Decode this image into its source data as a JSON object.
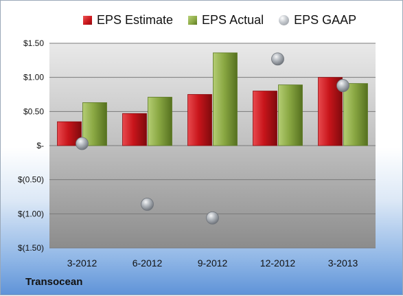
{
  "company": "Transocean",
  "legend": {
    "estimate": "EPS Estimate",
    "actual": "EPS Actual",
    "gaap": "EPS GAAP"
  },
  "colors": {
    "estimate": "#c8151b",
    "actual": "#8aa843",
    "gaap": "#a8adb3"
  },
  "chart_data": {
    "type": "bar",
    "categories": [
      "3-2012",
      "6-2012",
      "9-2012",
      "12-2012",
      "3-2013"
    ],
    "series": [
      {
        "name": "EPS Estimate",
        "type": "bar",
        "values": [
          0.35,
          0.47,
          0.75,
          0.8,
          1.0
        ]
      },
      {
        "name": "EPS Actual",
        "type": "bar",
        "values": [
          0.63,
          0.71,
          1.36,
          0.89,
          0.91
        ]
      },
      {
        "name": "EPS GAAP",
        "type": "scatter",
        "values": [
          0.03,
          -0.86,
          -1.06,
          1.27,
          0.88
        ]
      }
    ],
    "ylim": [
      -1.5,
      1.5
    ],
    "ytick_values": [
      1.5,
      1.0,
      0.5,
      0,
      -0.5,
      -1.0,
      -1.5
    ],
    "ytick_labels": [
      "$1.50",
      "$1.00",
      "$0.50",
      "$-",
      "$(0.50)",
      "$(1.00)",
      "$(1.50)"
    ],
    "grid": true,
    "legend_position": "top",
    "title": "",
    "xlabel": "",
    "ylabel": ""
  }
}
